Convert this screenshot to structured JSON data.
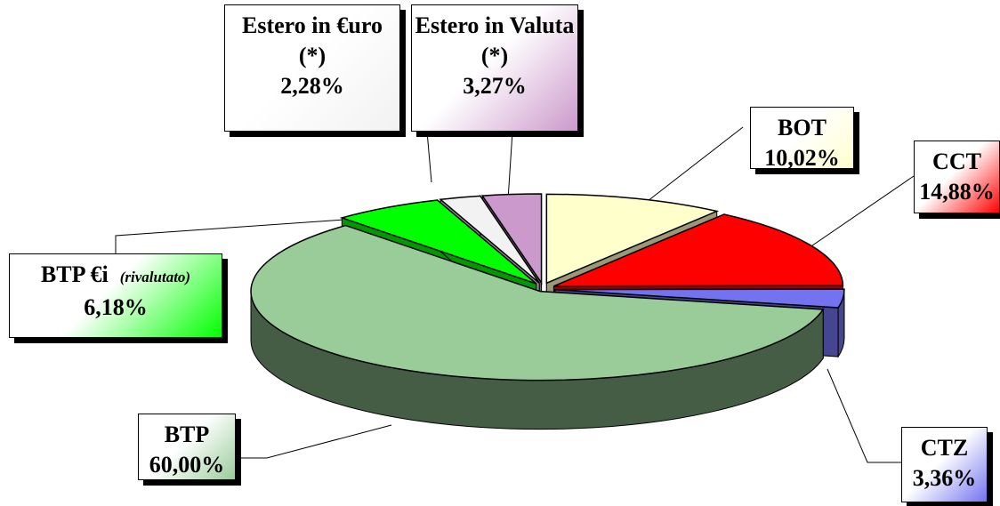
{
  "chart_data": {
    "type": "pie3d",
    "categories": [
      "BOT",
      "CCT",
      "CTZ",
      "BTP",
      "BTP €i",
      "Estero in €uro",
      "Estero in Valuta"
    ],
    "notes": [
      null,
      null,
      null,
      null,
      "(rivalutato)",
      "(*)",
      "(*)"
    ],
    "values": [
      10.02,
      14.88,
      3.36,
      60.0,
      6.18,
      2.28,
      3.27
    ],
    "value_labels": [
      "10,02%",
      "14,88%",
      "3,36%",
      "60,00%",
      "6,18%",
      "2,28%",
      "3,27%"
    ],
    "colors": [
      "#ffffcc",
      "#ff0000",
      "#7373f0",
      "#99cc99",
      "#00ff00",
      "#f2f2f2",
      "#cc99cc"
    ]
  }
}
